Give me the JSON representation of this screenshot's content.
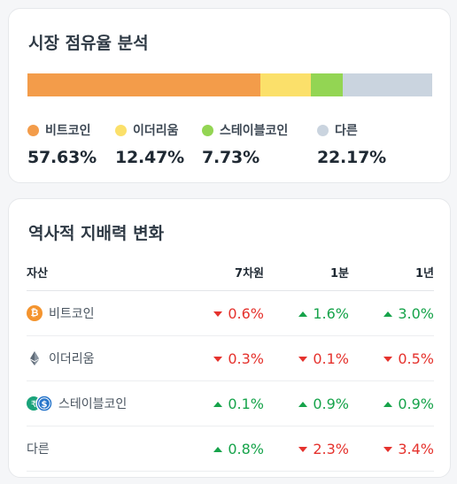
{
  "market_share": {
    "title": "시장 점유율 분석",
    "segments": [
      {
        "key": "btc",
        "label": "비트코인",
        "value_text": "57.63%",
        "value": 57.63,
        "color": "#f39c4a"
      },
      {
        "key": "eth",
        "label": "이더리움",
        "value_text": "12.47%",
        "value": 12.47,
        "color": "#fbe06a"
      },
      {
        "key": "stable",
        "label": "스테이블코인",
        "value_text": "7.73%",
        "value": 7.73,
        "color": "#93d553"
      },
      {
        "key": "other",
        "label": "다른",
        "value_text": "22.17%",
        "value": 22.17,
        "color": "#cad4df"
      }
    ]
  },
  "history": {
    "title": "역사적 지배력 변화",
    "headers": {
      "asset": "자산",
      "d7": "7차원",
      "m1": "1분",
      "y1": "1년"
    },
    "rows": [
      {
        "asset": "비트코인",
        "icon": "bitcoin-icon",
        "icon_glyph": "₿",
        "d7": {
          "text": "0.6%",
          "dir": "down"
        },
        "m1": {
          "text": "1.6%",
          "dir": "up"
        },
        "y1": {
          "text": "3.0%",
          "dir": "up"
        }
      },
      {
        "asset": "이더리움",
        "icon": "ethereum-icon",
        "d7": {
          "text": "0.3%",
          "dir": "down"
        },
        "m1": {
          "text": "0.1%",
          "dir": "down"
        },
        "y1": {
          "text": "0.5%",
          "dir": "down"
        }
      },
      {
        "asset": "스테이블코인",
        "icon": "stablecoin-icon",
        "icon_glyphs": [
          "₹",
          "$"
        ],
        "d7": {
          "text": "0.1%",
          "dir": "up"
        },
        "m1": {
          "text": "0.9%",
          "dir": "up"
        },
        "y1": {
          "text": "0.9%",
          "dir": "up"
        }
      },
      {
        "asset": "다른",
        "icon": "",
        "d7": {
          "text": "0.8%",
          "dir": "up"
        },
        "m1": {
          "text": "2.3%",
          "dir": "down"
        },
        "y1": {
          "text": "3.4%",
          "dir": "down"
        }
      }
    ]
  },
  "colors": {
    "up": "#16a34a",
    "down": "#e5322d"
  }
}
